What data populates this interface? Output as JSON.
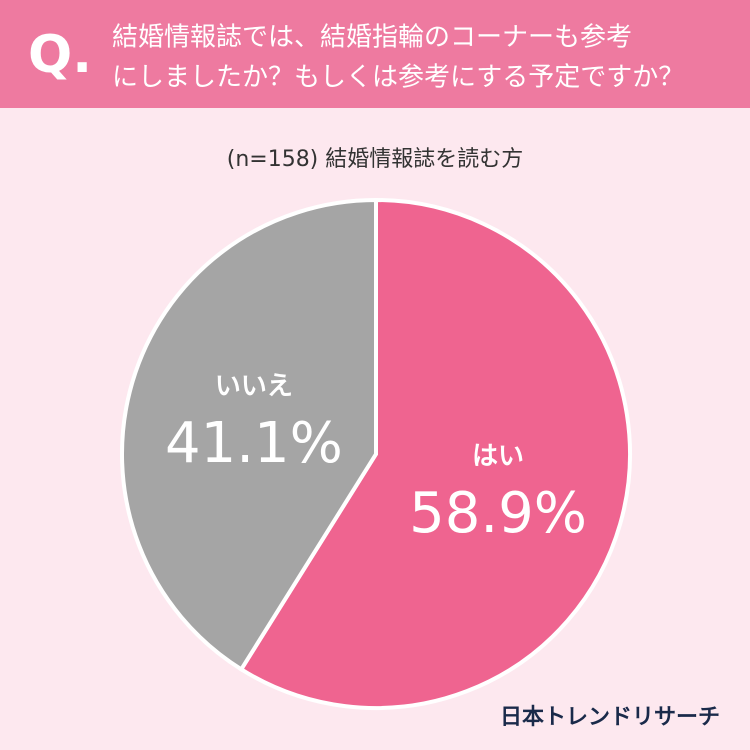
{
  "chart_data": {
    "type": "pie",
    "badge": "Q.",
    "title_lines": [
      "結婚情報誌では、結婚指輪のコーナーも参考",
      "にしましたか？もしくは参考にする予定ですか？"
    ],
    "subtitle": "(n=158) 結婚情報誌を読む方",
    "categories": [
      "はい",
      "いいえ"
    ],
    "values": [
      58.9,
      41.1
    ],
    "value_labels": [
      "58.9%",
      "41.1%"
    ],
    "colors": [
      "#ef6490",
      "#a5a5a5"
    ],
    "source": "日本トレンドリサーチ"
  }
}
